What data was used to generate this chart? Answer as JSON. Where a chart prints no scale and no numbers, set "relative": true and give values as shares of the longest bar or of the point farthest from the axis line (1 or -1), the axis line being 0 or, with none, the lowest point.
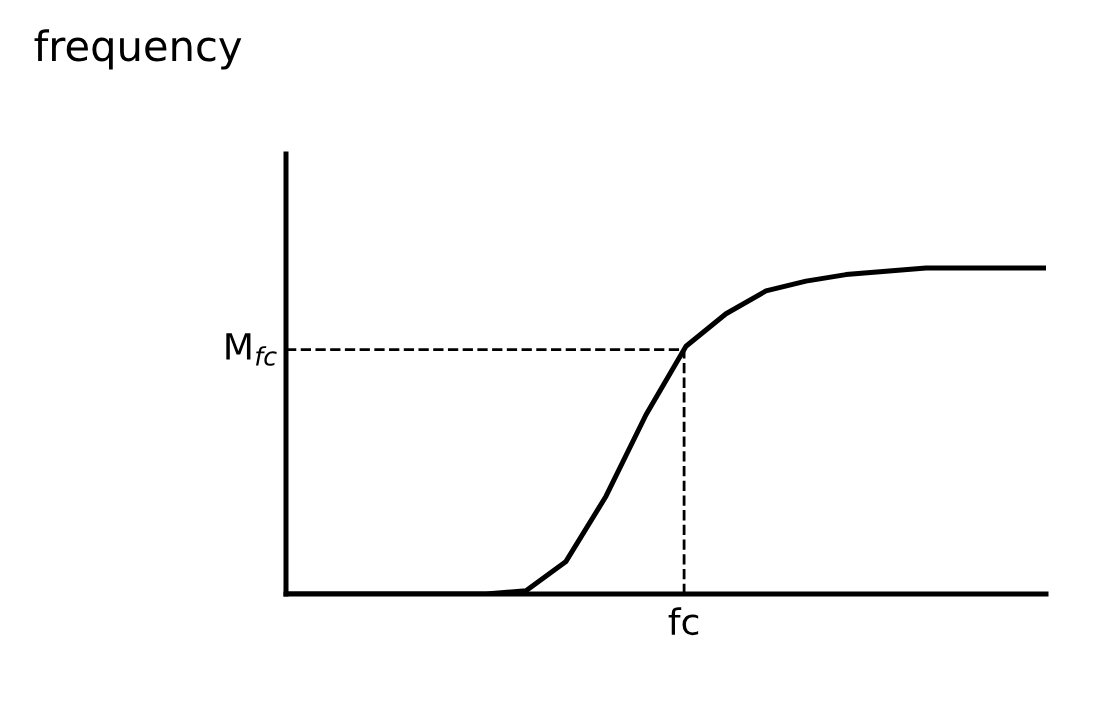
{
  "chart_data": {
    "type": "line",
    "title": "frequency",
    "relative": true,
    "categories": [
      null,
      null,
      null,
      null,
      null,
      null,
      null,
      null,
      null,
      null,
      null,
      null,
      null,
      null,
      null,
      null,
      null,
      null,
      null,
      null
    ],
    "series": [
      {
        "color": "#000000",
        "values": [
          0,
          0,
          0,
          0,
          0,
          0,
          0.01,
          0.1,
          0.3,
          0.55,
          0.76,
          0.86,
          0.93,
          0.96,
          0.98,
          0.99,
          1,
          1,
          1,
          1
        ]
      }
    ],
    "ref_lines": [
      {
        "axis": "y",
        "value": 0.75,
        "label": "M$_{fc}$",
        "color": "#000000",
        "line_style": "dashed"
      }
    ],
    "annotations": [
      "fc"
    ]
  }
}
